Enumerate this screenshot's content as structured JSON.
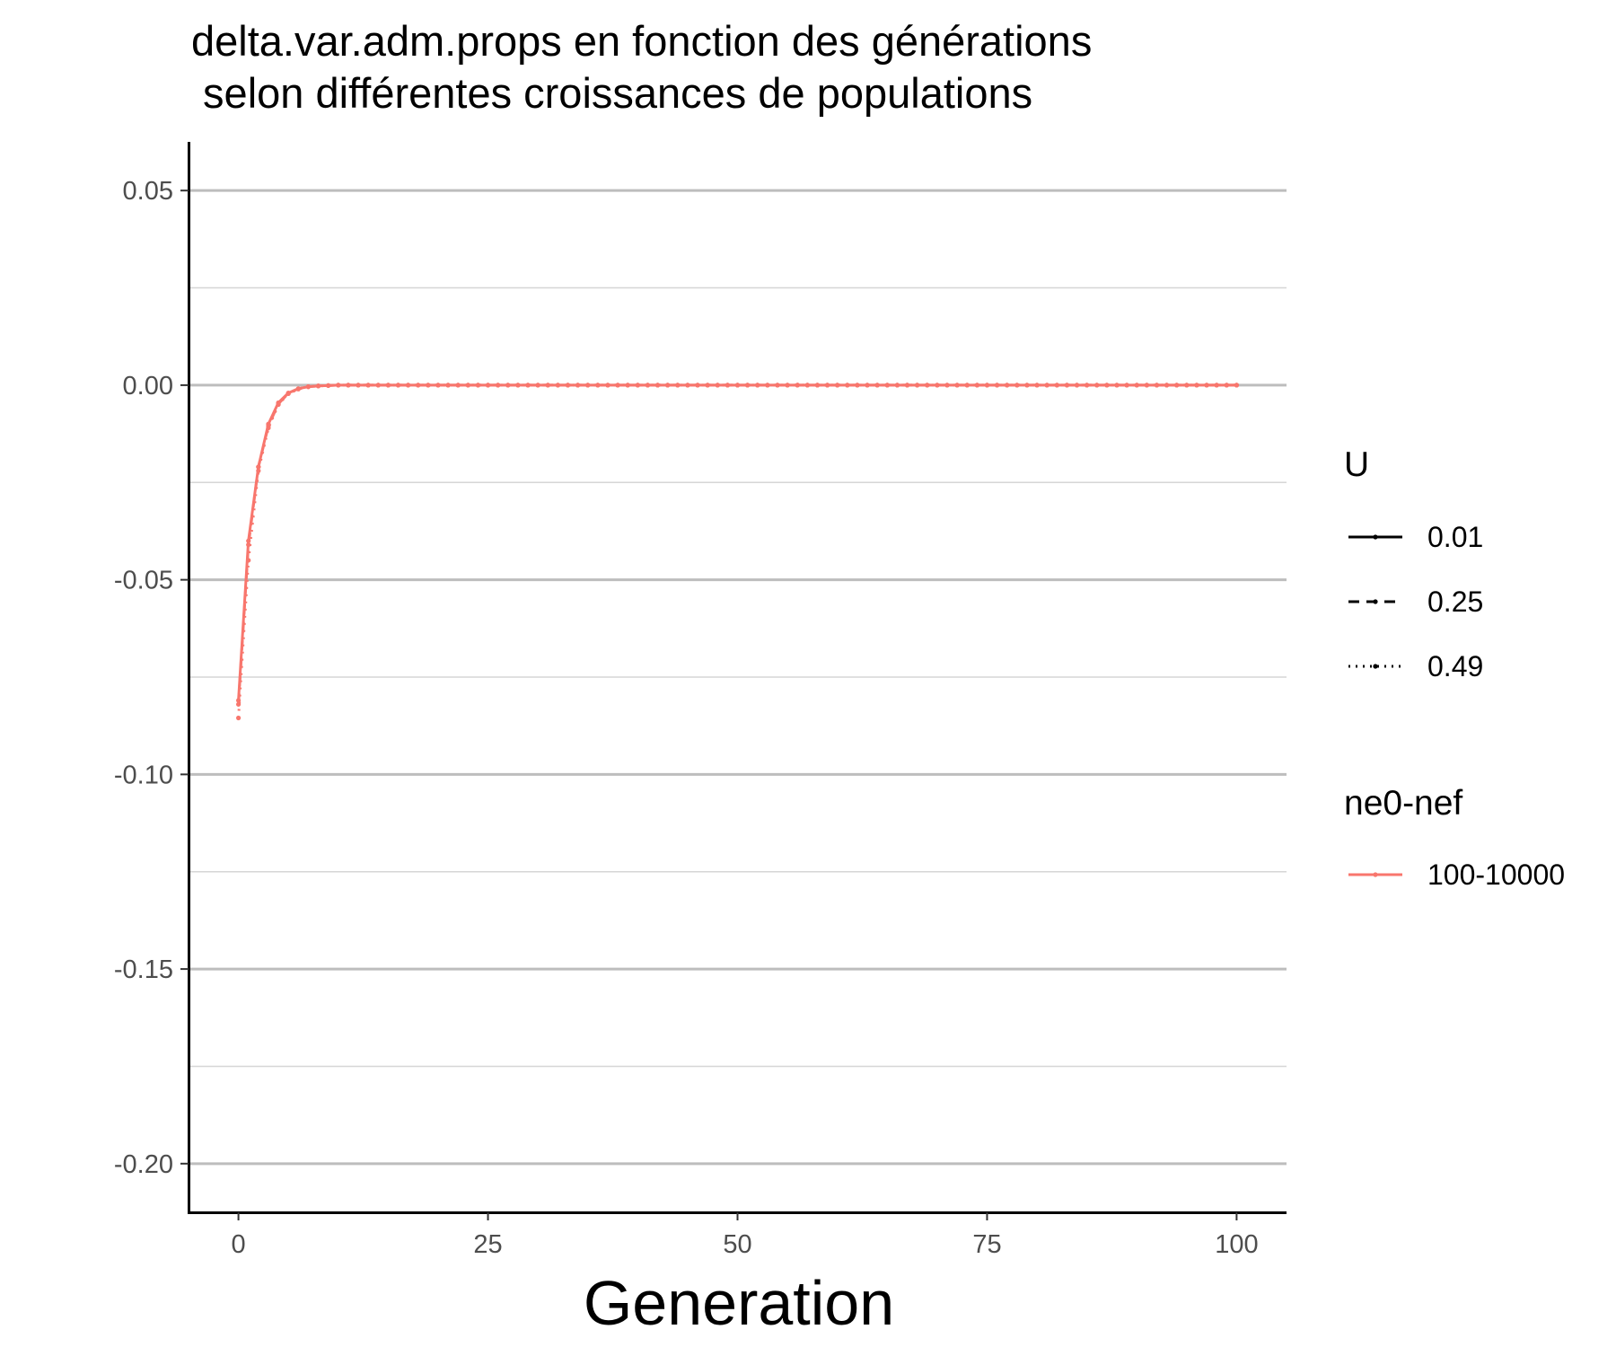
{
  "chart_data": {
    "type": "line",
    "title_lines": [
      "delta.var.adm.props en fonction des générations",
      " selon différentes croissances de populations"
    ],
    "xlabel": "Generation",
    "ylabel": "",
    "xlim": [
      -5,
      105
    ],
    "ylim": [
      -0.2125,
      0.0625
    ],
    "x_ticks": [
      0,
      25,
      50,
      75,
      100
    ],
    "x_tick_labels": [
      "0",
      "25",
      "50",
      "75",
      "100"
    ],
    "y_ticks": [
      -0.2,
      -0.15,
      -0.1,
      -0.05,
      0.0,
      0.05
    ],
    "y_tick_labels": [
      "-0.20",
      "-0.15",
      "-0.10",
      "-0.05",
      "0.00",
      "0.05"
    ],
    "grid": true,
    "legend_position": "right",
    "legends": [
      {
        "title": "U",
        "entries": [
          {
            "label": "0.01",
            "linetype": "solid"
          },
          {
            "label": "0.25",
            "linetype": "dashed"
          },
          {
            "label": "0.49",
            "linetype": "dotted"
          }
        ]
      },
      {
        "title": "ne0-nef",
        "entries": [
          {
            "label": "100-10000",
            "color": "#f8766d"
          }
        ]
      }
    ],
    "series": [
      {
        "U": "0.01",
        "ne0_nef": "100-10000",
        "linetype": "solid",
        "color": "#f8766d",
        "x": [
          0,
          1,
          2,
          3,
          4,
          5,
          6,
          7,
          8,
          9,
          10,
          11,
          12,
          13,
          14,
          15,
          16,
          17,
          18,
          19,
          20,
          21,
          22,
          23,
          24,
          25,
          26,
          27,
          28,
          29,
          30,
          31,
          32,
          33,
          34,
          35,
          36,
          37,
          38,
          39,
          40,
          41,
          42,
          43,
          44,
          45,
          46,
          47,
          48,
          49,
          50,
          51,
          52,
          53,
          54,
          55,
          56,
          57,
          58,
          59,
          60,
          61,
          62,
          63,
          64,
          65,
          66,
          67,
          68,
          69,
          70,
          71,
          72,
          73,
          74,
          75,
          76,
          77,
          78,
          79,
          80,
          81,
          82,
          83,
          84,
          85,
          86,
          87,
          88,
          89,
          90,
          91,
          92,
          93,
          94,
          95,
          96,
          97,
          98,
          99,
          100
        ],
        "y": [
          -0.081,
          -0.04,
          -0.021,
          -0.01,
          -0.0045,
          -0.002,
          -0.0009,
          -0.0004,
          -0.0002,
          -0.0001,
          0,
          0,
          0,
          0,
          0,
          0,
          0,
          0,
          0,
          0,
          0,
          0,
          0,
          0,
          0,
          0,
          0,
          0,
          0,
          0,
          0,
          0,
          0,
          0,
          0,
          0,
          0,
          0,
          0,
          0,
          0,
          0,
          0,
          0,
          0,
          0,
          0,
          0,
          0,
          0,
          0,
          0,
          0,
          0,
          0,
          0,
          0,
          0,
          0,
          0,
          0,
          0,
          0,
          0,
          0,
          0,
          0,
          0,
          0,
          0,
          0,
          0,
          0,
          0,
          0,
          0,
          0,
          0,
          0,
          0,
          0,
          0,
          0,
          0,
          0,
          0,
          0,
          0,
          0,
          0,
          0,
          0,
          0,
          0,
          0,
          0,
          0,
          0,
          0,
          0,
          0
        ]
      },
      {
        "U": "0.25",
        "ne0_nef": "100-10000",
        "linetype": "dashed",
        "color": "#f8766d",
        "x": [
          0,
          1,
          2,
          3,
          4,
          5,
          6,
          7,
          8,
          9,
          10,
          11,
          12,
          13,
          14,
          15,
          16,
          17,
          18,
          19,
          20,
          21,
          22,
          23,
          24,
          25,
          26,
          27,
          28,
          29,
          30,
          31,
          32,
          33,
          34,
          35,
          36,
          37,
          38,
          39,
          40,
          41,
          42,
          43,
          44,
          45,
          46,
          47,
          48,
          49,
          50,
          51,
          52,
          53,
          54,
          55,
          56,
          57,
          58,
          59,
          60,
          61,
          62,
          63,
          64,
          65,
          66,
          67,
          68,
          69,
          70,
          71,
          72,
          73,
          74,
          75,
          76,
          77,
          78,
          79,
          80,
          81,
          82,
          83,
          84,
          85,
          86,
          87,
          88,
          89,
          90,
          91,
          92,
          93,
          94,
          95,
          96,
          97,
          98,
          99,
          100
        ],
        "y": [
          -0.082,
          -0.041,
          -0.021,
          -0.0105,
          -0.0048,
          -0.0021,
          -0.0009,
          -0.0004,
          -0.0002,
          -0.0001,
          0,
          0,
          0,
          0,
          0,
          0,
          0,
          0,
          0,
          0,
          0,
          0,
          0,
          0,
          0,
          0,
          0,
          0,
          0,
          0,
          0,
          0,
          0,
          0,
          0,
          0,
          0,
          0,
          0,
          0,
          0,
          0,
          0,
          0,
          0,
          0,
          0,
          0,
          0,
          0,
          0,
          0,
          0,
          0,
          0,
          0,
          0,
          0,
          0,
          0,
          0,
          0,
          0,
          0,
          0,
          0,
          0,
          0,
          0,
          0,
          0,
          0,
          0,
          0,
          0,
          0,
          0,
          0,
          0,
          0,
          0,
          0,
          0,
          0,
          0,
          0,
          0,
          0,
          0,
          0,
          0,
          0,
          0,
          0,
          0,
          0,
          0,
          0,
          0,
          0,
          0
        ]
      },
      {
        "U": "0.49",
        "ne0_nef": "100-10000",
        "linetype": "dotted",
        "color": "#f8766d",
        "x": [
          0,
          1,
          2,
          3,
          4,
          5,
          6,
          7,
          8,
          9,
          10,
          11,
          12,
          13,
          14,
          15,
          16,
          17,
          18,
          19,
          20,
          21,
          22,
          23,
          24,
          25,
          26,
          27,
          28,
          29,
          30,
          31,
          32,
          33,
          34,
          35,
          36,
          37,
          38,
          39,
          40,
          41,
          42,
          43,
          44,
          45,
          46,
          47,
          48,
          49,
          50,
          51,
          52,
          53,
          54,
          55,
          56,
          57,
          58,
          59,
          60,
          61,
          62,
          63,
          64,
          65,
          66,
          67,
          68,
          69,
          70,
          71,
          72,
          73,
          74,
          75,
          76,
          77,
          78,
          79,
          80,
          81,
          82,
          83,
          84,
          85,
          86,
          87,
          88,
          89,
          90,
          91,
          92,
          93,
          94,
          95,
          96,
          97,
          98,
          99,
          100
        ],
        "y": [
          -0.0855,
          -0.045,
          -0.022,
          -0.011,
          -0.005,
          -0.0022,
          -0.001,
          -0.0004,
          -0.0002,
          -0.0001,
          0,
          0,
          0,
          0,
          0,
          0,
          0,
          0,
          0,
          0,
          0,
          0,
          0,
          0,
          0,
          0,
          0,
          0,
          0,
          0,
          0,
          0,
          0,
          0,
          0,
          0,
          0,
          0,
          0,
          0,
          0,
          0,
          0,
          0,
          0,
          0,
          0,
          0,
          0,
          0,
          0,
          0,
          0,
          0,
          0,
          0,
          0,
          0,
          0,
          0,
          0,
          0,
          0,
          0,
          0,
          0,
          0,
          0,
          0,
          0,
          0,
          0,
          0,
          0,
          0,
          0,
          0,
          0,
          0,
          0,
          0,
          0,
          0,
          0,
          0,
          0,
          0,
          0,
          0,
          0,
          0,
          0,
          0,
          0,
          0,
          0,
          0,
          0,
          0,
          0,
          0
        ]
      }
    ]
  }
}
